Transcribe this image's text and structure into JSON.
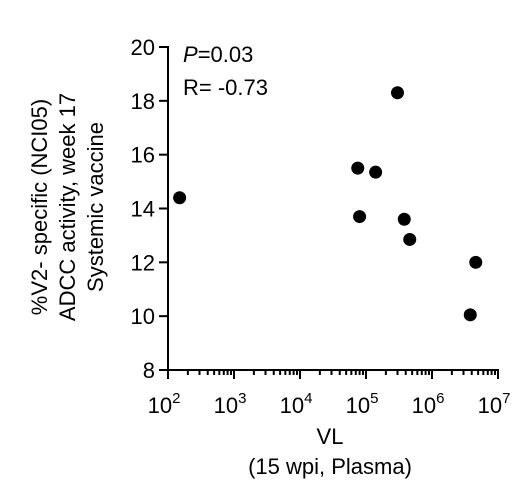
{
  "chart_data": {
    "type": "scatter",
    "title": "",
    "xlabel": "VL",
    "xlabel_sub": "(15 wpi, Plasma)",
    "ylabel_lines": [
      "%V2- specific (NCI05)",
      "ADCC activity, week 17",
      "Systemic vaccine"
    ],
    "x_scale": "log",
    "xlim": [
      100,
      10000000
    ],
    "ylim": [
      8,
      20
    ],
    "x_ticks": [
      {
        "base": "10",
        "exp": "2"
      },
      {
        "base": "10",
        "exp": "3"
      },
      {
        "base": "10",
        "exp": "4"
      },
      {
        "base": "10",
        "exp": "5"
      },
      {
        "base": "10",
        "exp": "6"
      },
      {
        "base": "10",
        "exp": "7"
      }
    ],
    "y_ticks": [
      "8",
      "10",
      "12",
      "14",
      "16",
      "18",
      "20"
    ],
    "annotation_p_label": "P",
    "annotation_p_value": "=0.03",
    "annotation_r": "R= -0.73",
    "grid": false,
    "marker_color": "#000000",
    "points": [
      {
        "x": 150,
        "y": 14.4
      },
      {
        "x": 75000,
        "y": 15.5
      },
      {
        "x": 80000,
        "y": 13.7
      },
      {
        "x": 140000,
        "y": 15.35
      },
      {
        "x": 300000,
        "y": 18.3
      },
      {
        "x": 380000,
        "y": 13.6
      },
      {
        "x": 460000,
        "y": 12.85
      },
      {
        "x": 3800000,
        "y": 10.05
      },
      {
        "x": 4600000,
        "y": 12.0
      }
    ]
  }
}
